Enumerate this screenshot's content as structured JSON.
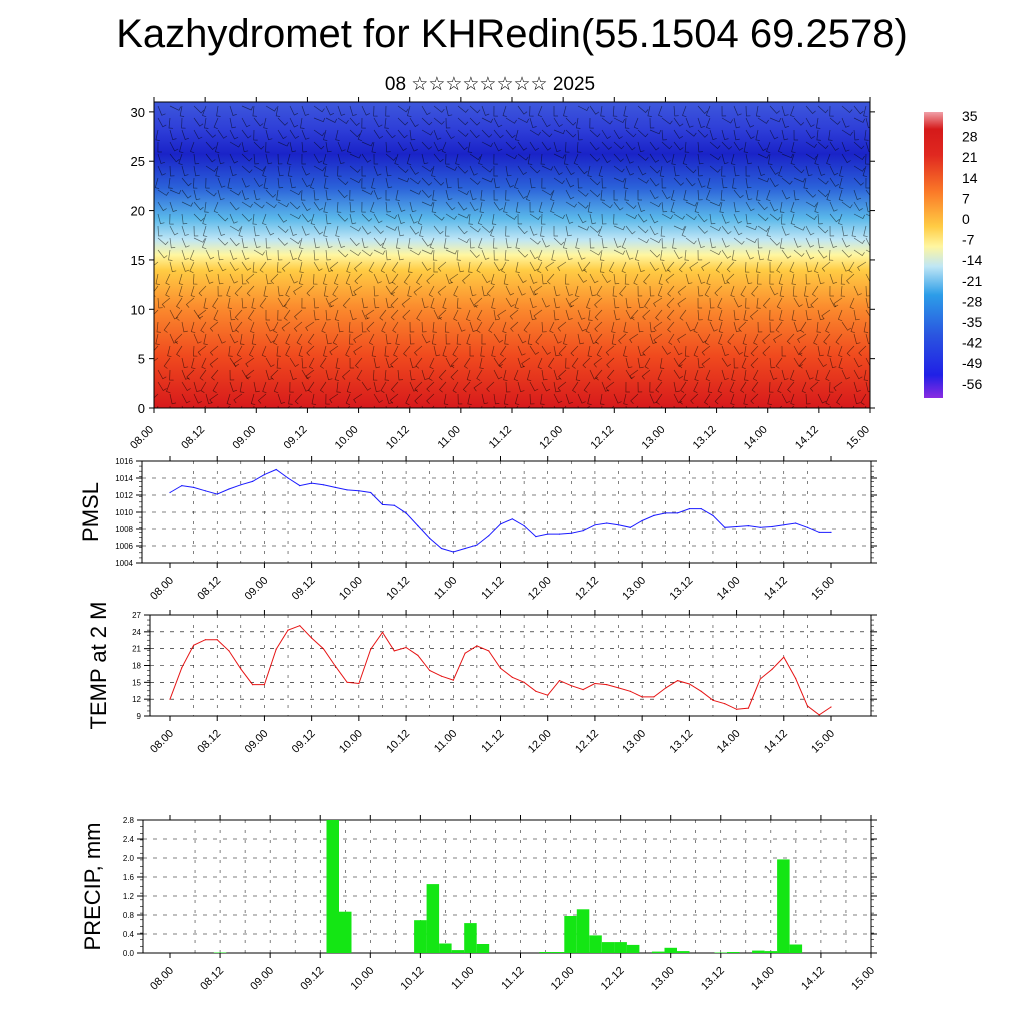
{
  "title": "Kazhydromet for KHRedin(55.1504 69.2578)",
  "subtitle": "08 ☆☆☆☆☆☆☆☆ 2025",
  "chart_data": [
    {
      "type": "heatmap",
      "panel": "cross-section",
      "description_free": true,
      "x_ticks": [
        "08.00",
        "08.12",
        "09.00",
        "09.12",
        "10.00",
        "10.12",
        "11.00",
        "11.12",
        "12.00",
        "12.12",
        "13.00",
        "13.12",
        "14.00",
        "14.12",
        "15.00"
      ],
      "y_ticks": [
        "0",
        "5",
        "10",
        "15",
        "20",
        "25",
        "30"
      ],
      "ylim": [
        0,
        31
      ],
      "colorbar": {
        "labels": [
          "35",
          "28",
          "21",
          "14",
          "7",
          "0",
          "-7",
          "-14",
          "-21",
          "-28",
          "-35",
          "-42",
          "-49",
          "-56"
        ],
        "range": [
          -63,
          42
        ]
      },
      "wind_barbs": true
    },
    {
      "type": "line",
      "panel": "pmsl",
      "ylabel": "PMSL",
      "ylim": [
        1004,
        1016
      ],
      "y_ticks": [
        "1004",
        "1006",
        "1008",
        "1010",
        "1012",
        "1014",
        "1016"
      ],
      "x_ticks": [
        "08.00",
        "08.12",
        "09.00",
        "09.12",
        "10.00",
        "10.12",
        "11.00",
        "11.12",
        "12.00",
        "12.12",
        "13.00",
        "13.12",
        "14.00",
        "14.12",
        "15.00"
      ],
      "color": "#1a1aff",
      "series": [
        {
          "values": [
            1012.3,
            1013.1,
            1012.9,
            1012.5,
            1012.1,
            1012.7,
            1013.2,
            1013.6,
            1014.4,
            1015.0,
            1014.0,
            1013.1,
            1013.4,
            1013.2,
            1012.9,
            1012.6,
            1012.5,
            1012.3,
            1010.9,
            1010.8,
            1009.9,
            1008.4,
            1006.9,
            1005.7,
            1005.3,
            1005.7,
            1006.1,
            1007.2,
            1008.6,
            1009.2,
            1008.4,
            1007.1,
            1007.4,
            1007.4,
            1007.5,
            1007.8,
            1008.5,
            1008.7,
            1008.5,
            1008.2,
            1009.0,
            1009.6,
            1009.9,
            1009.9,
            1010.4,
            1010.4,
            1009.6,
            1008.2,
            1008.3,
            1008.4,
            1008.2,
            1008.3,
            1008.5,
            1008.7,
            1008.2,
            1007.6,
            1007.6
          ]
        }
      ]
    },
    {
      "type": "line",
      "panel": "temp",
      "ylabel": "TEMP at 2 M",
      "ylim": [
        9,
        27
      ],
      "y_ticks": [
        "9",
        "12",
        "15",
        "18",
        "21",
        "24",
        "27"
      ],
      "x_ticks": [
        "08.00",
        "08.12",
        "09.00",
        "09.12",
        "10.00",
        "10.12",
        "11.00",
        "11.12",
        "12.00",
        "12.12",
        "13.00",
        "13.12",
        "14.00",
        "14.12",
        "15.00"
      ],
      "color": "#e61414",
      "series": [
        {
          "values": [
            12.0,
            17.6,
            21.6,
            22.6,
            22.6,
            20.6,
            17.4,
            14.6,
            14.6,
            20.9,
            24.3,
            25.1,
            22.9,
            21.0,
            17.9,
            15.0,
            14.8,
            20.9,
            23.9,
            20.6,
            21.2,
            19.8,
            17.1,
            16.1,
            15.4,
            20.2,
            21.5,
            20.6,
            17.5,
            15.9,
            15.0,
            13.4,
            12.7,
            15.3,
            14.4,
            13.7,
            14.8,
            14.6,
            14.0,
            13.4,
            12.4,
            12.4,
            14.0,
            15.3,
            14.7,
            13.4,
            11.8,
            11.2,
            10.2,
            10.4,
            15.6,
            17.3,
            19.5,
            15.7,
            10.8,
            9.2,
            10.6
          ]
        }
      ]
    },
    {
      "type": "bar",
      "panel": "precip",
      "ylabel": "PRECIP, mm",
      "ylim": [
        0,
        2.8
      ],
      "y_ticks": [
        "0.0",
        "0.4",
        "0.8",
        "1.2",
        "1.6",
        "2.0",
        "2.4",
        "2.8"
      ],
      "x_ticks": [
        "08.00",
        "08.12",
        "09.00",
        "09.12",
        "10.00",
        "10.12",
        "11.00",
        "11.12",
        "12.00",
        "12.12",
        "13.00",
        "13.12",
        "14.00",
        "14.12",
        "15.00"
      ],
      "color": "#14e614",
      "values": [
        0,
        0,
        0,
        0,
        0.01,
        0,
        0,
        0,
        0,
        0,
        0,
        0,
        0,
        2.8,
        0.87,
        0,
        0,
        0,
        0,
        0,
        0.69,
        1.45,
        0.2,
        0.06,
        0.63,
        0.19,
        0,
        0,
        0,
        0,
        0.02,
        0.02,
        0.78,
        0.92,
        0.37,
        0.23,
        0.23,
        0.17,
        0,
        0.03,
        0.11,
        0.04,
        0,
        0,
        0.01,
        0.02,
        0,
        0.05,
        0.04,
        1.97,
        0.18,
        0,
        0,
        0,
        0,
        0,
        0
      ]
    }
  ]
}
